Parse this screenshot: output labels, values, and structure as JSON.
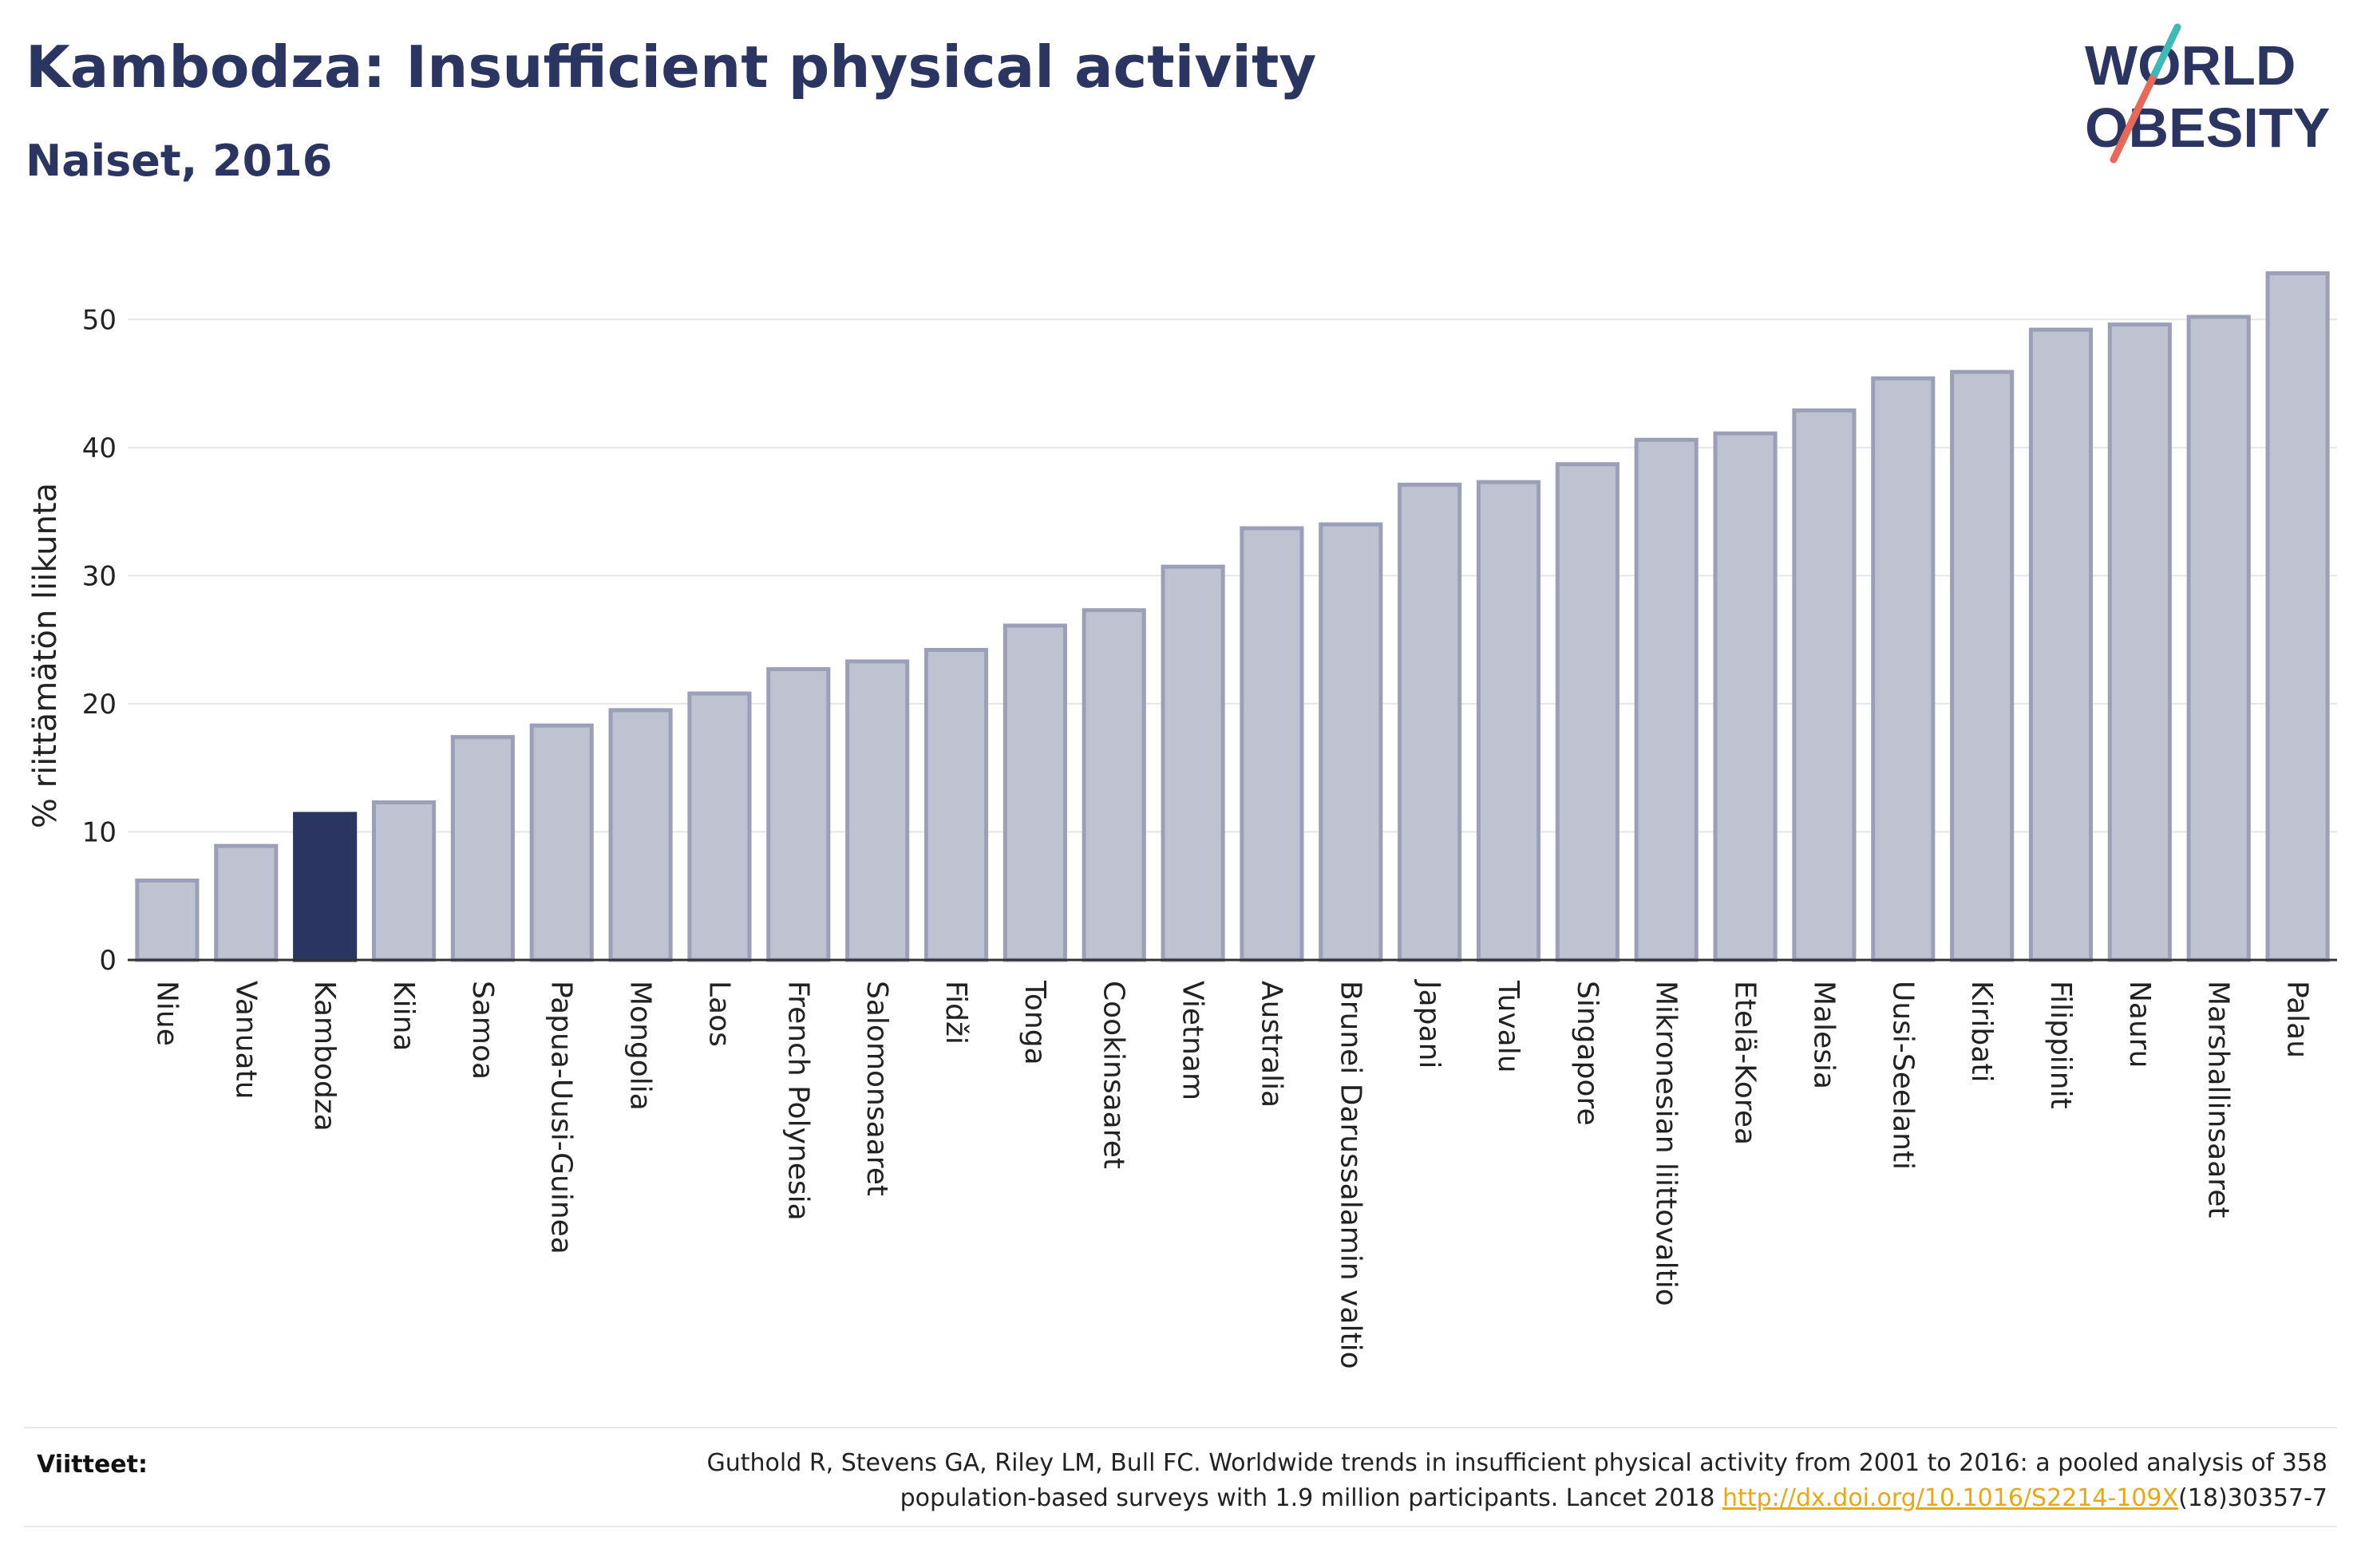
{
  "header": {
    "title": "Kambodza: Insufficient physical activity",
    "subtitle": "Naiset, 2016"
  },
  "logo": {
    "line1": "WORLD",
    "line2": "OBESITY",
    "accent_teal": "#3fb8b8",
    "accent_red": "#e8685a"
  },
  "footer": {
    "label": "Viitteet:",
    "text_line1": "Guthold R, Stevens GA, Riley LM, Bull FC. Worldwide trends in insufficient physical activity from 2001 to 2016: a pooled analysis of 358",
    "text_line2_prefix": "population-based surveys with 1.9 million participants. Lancet 2018 ",
    "link_text": "http://dx.doi.org/10.1016/S2214-109X",
    "text_line2_suffix": "(18)30357-7"
  },
  "colors": {
    "bar": "#bfc2d0",
    "bar_border": "#9ba0b8",
    "highlight": "#2b3561",
    "text": "#2b3561",
    "grid": "#e6e6ea",
    "axis": "#333333"
  },
  "chart_data": {
    "type": "bar",
    "ylabel": "% riittämätön liikunta",
    "xlabel": "",
    "ylim": [
      0,
      55
    ],
    "yticks": [
      0,
      10,
      20,
      30,
      40,
      50
    ],
    "grid": true,
    "highlight": "Kambodza",
    "categories": [
      "Niue",
      "Vanuatu",
      "Kambodza",
      "Kiina",
      "Samoa",
      "Papua-Uusi-Guinea",
      "Mongolia",
      "Laos",
      "French Polynesia",
      "Salomonsaaret",
      "Fidži",
      "Tonga",
      "Cookinsaaret",
      "Vietnam",
      "Australia",
      "Brunei Darussalamin valtio",
      "Japani",
      "Tuvalu",
      "Singapore",
      "Mikronesian liittovaltio",
      "Etelä-Korea",
      "Malesia",
      "Uusi-Seelanti",
      "Kiribati",
      "Filippiinit",
      "Nauru",
      "Marshallinsaaret",
      "Palau"
    ],
    "values": [
      6.2,
      8.9,
      11.4,
      12.3,
      17.4,
      18.3,
      19.5,
      20.8,
      22.7,
      23.3,
      24.2,
      26.1,
      27.3,
      30.7,
      33.7,
      34.0,
      37.1,
      37.3,
      38.7,
      40.6,
      41.1,
      42.9,
      45.4,
      45.9,
      49.2,
      49.6,
      50.2,
      53.6
    ]
  }
}
